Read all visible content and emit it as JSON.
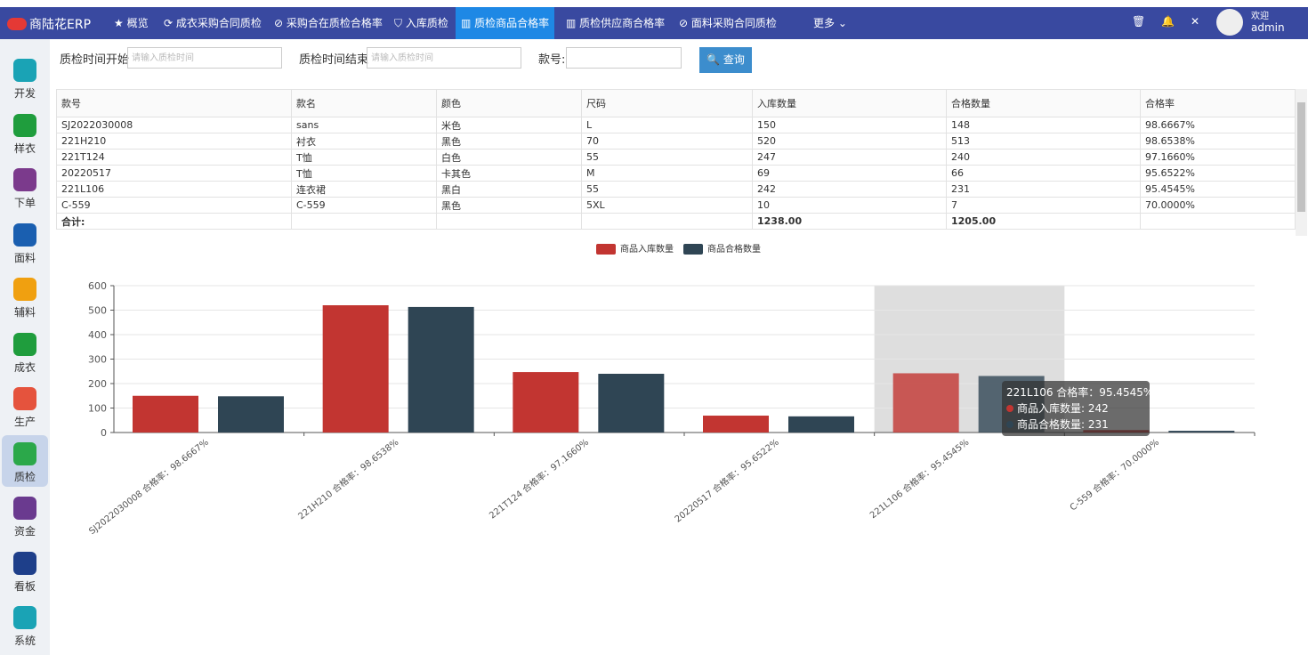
{
  "header": {
    "logo": "商陆花ERP",
    "nav": [
      "概览",
      "成衣采购合同质检",
      "采购合在质检合格率",
      "入库质检",
      "质检商品合格率",
      "质检供应商合格率",
      "面料采购合同质检"
    ],
    "active_nav": 4,
    "more": "更多",
    "welcome": "欢迎",
    "user": "admin"
  },
  "sidebar": {
    "items": [
      "开发",
      "样衣",
      "下单",
      "面料",
      "辅料",
      "成衣",
      "生产",
      "质检",
      "资金",
      "看板",
      "系统"
    ],
    "active": 7
  },
  "filters": {
    "start_label": "质检时间开始",
    "start_placeholder": "请输入质检时间",
    "end_label": "质检时间结束",
    "end_placeholder": "请输入质检时间",
    "code_label": "款号:",
    "button": "查询"
  },
  "table": {
    "headers": [
      "款号",
      "款名",
      "颜色",
      "尺码",
      "入库数量",
      "合格数量",
      "合格率"
    ],
    "rows": [
      [
        "SJ2022030008",
        "sans",
        "米色",
        "L",
        "150",
        "148",
        "98.6667%"
      ],
      [
        "221H210",
        "衬衣",
        "黑色",
        "70",
        "520",
        "513",
        "98.6538%"
      ],
      [
        "221T124",
        "T恤",
        "白色",
        "55",
        "247",
        "240",
        "97.1660%"
      ],
      [
        "20220517",
        "T恤",
        "卡其色",
        "M",
        "69",
        "66",
        "95.6522%"
      ],
      [
        "221L106",
        "连衣裙",
        "黑白",
        "55",
        "242",
        "231",
        "95.4545%"
      ],
      [
        "C-559",
        "C-559",
        "黑色",
        "5XL",
        "10",
        "7",
        "70.0000%"
      ]
    ],
    "total": {
      "label": "合计:",
      "in_qty": "1238.00",
      "pass_qty": "1205.00"
    }
  },
  "chart_data": {
    "type": "bar",
    "categories": [
      "SJ2022030008 合格率：98.6667%",
      "221H210 合格率：98.6538%",
      "221T124 合格率：97.1660%",
      "20220517 合格率：95.6522%",
      "221L106 合格率：95.4545%",
      "C-559 合格率：70.0000%"
    ],
    "series": [
      {
        "name": "商品入库数量",
        "color": "#c23531",
        "values": [
          150,
          520,
          247,
          69,
          242,
          10
        ]
      },
      {
        "name": "商品合格数量",
        "color": "#2f4554",
        "values": [
          148,
          513,
          240,
          66,
          231,
          7
        ]
      }
    ],
    "ylim": [
      0,
      600
    ],
    "yticks": [
      0,
      100,
      200,
      300,
      400,
      500,
      600
    ],
    "grid": true,
    "legend": "top",
    "tooltip": {
      "index": 4,
      "title": "221L106 合格率：95.4545%",
      "lines": [
        "商品入库数量: 242",
        "商品合格数量: 231"
      ]
    }
  }
}
